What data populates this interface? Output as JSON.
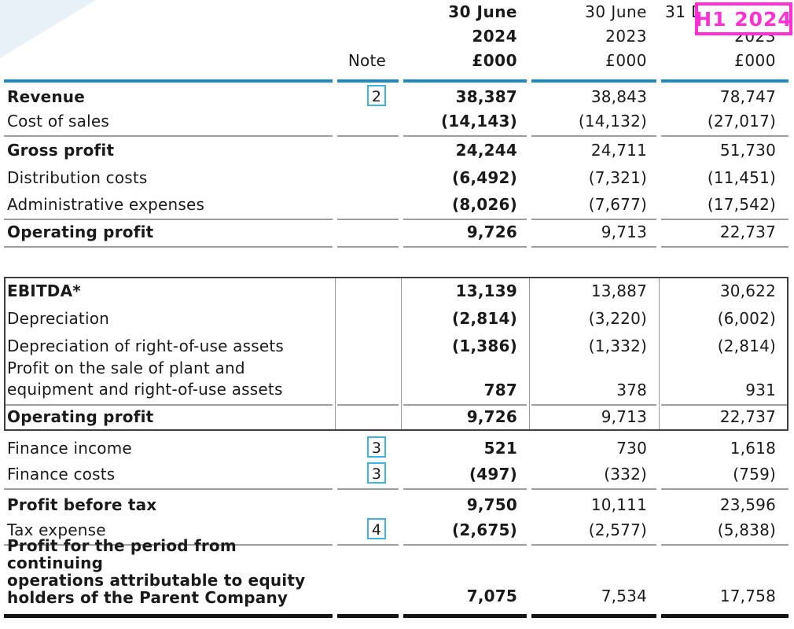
{
  "annotation": {
    "label": "H1 2024"
  },
  "colors": {
    "teal_rule": "#1f8cc0",
    "note_box_border": "#3eb5de",
    "gray_rule": "#9e9e9e",
    "thick_rule": "#161616",
    "box_border": "#3f3f3f",
    "highlight_magenta": "#ff2ed6",
    "corner_blue": "#e9f1f8"
  },
  "header": {
    "note_label": "Note",
    "columns": [
      {
        "period": "30 June",
        "year": "2024",
        "unit": "£000",
        "emphasis": true
      },
      {
        "period": "30 June",
        "year": "2023",
        "unit": "£000",
        "emphasis": false
      },
      {
        "period": "31 December",
        "year": "2023",
        "unit": "£000",
        "emphasis": false
      }
    ]
  },
  "sections": [
    {
      "name": "profit-and-loss-summary",
      "boxed": false,
      "rows": [
        {
          "label": "Revenue",
          "bold": true,
          "note": "2",
          "values": [
            "38,387",
            "38,843",
            "78,747"
          ]
        },
        {
          "label": "Cost of sales",
          "values": [
            "(14,143)",
            "(14,132)",
            "(27,017)"
          ],
          "rule": "gray"
        },
        {
          "label": "Gross profit",
          "bold": true,
          "values": [
            "24,244",
            "24,711",
            "51,730"
          ]
        },
        {
          "label": "Distribution costs",
          "values": [
            "(6,492)",
            "(7,321)",
            "(11,451)"
          ]
        },
        {
          "label": "Administrative expenses",
          "values": [
            "(8,026)",
            "(7,677)",
            "(17,542)"
          ],
          "rule": "gray"
        },
        {
          "label": "Operating profit",
          "bold": true,
          "values": [
            "9,726",
            "9,713",
            "22,737"
          ],
          "rule": "gray"
        }
      ]
    },
    {
      "name": "ebitda-reconciliation",
      "boxed": true,
      "rows": [
        {
          "label": "EBITDA*",
          "bold": true,
          "values": [
            "13,139",
            "13,887",
            "30,622"
          ]
        },
        {
          "label": "Depreciation",
          "values": [
            "(2,814)",
            "(3,220)",
            "(6,002)"
          ]
        },
        {
          "label": "Depreciation of right-of-use assets",
          "values": [
            "(1,386)",
            "(1,332)",
            "(2,814)"
          ]
        },
        {
          "label_lines": [
            "Profit on the sale of plant and",
            "equipment and right-of-use assets"
          ],
          "values": [
            "787",
            "378",
            "931"
          ],
          "rule": "gray"
        },
        {
          "label": "Operating profit",
          "bold": true,
          "values": [
            "9,726",
            "9,713",
            "22,737"
          ]
        }
      ]
    },
    {
      "name": "profit-detail",
      "boxed": false,
      "rows": [
        {
          "label": "Finance income",
          "note": "3",
          "values": [
            "521",
            "730",
            "1,618"
          ]
        },
        {
          "label": "Finance costs",
          "note": "3",
          "values": [
            "(497)",
            "(332)",
            "(759)"
          ],
          "rule": "gray"
        },
        {
          "label": "Profit before tax",
          "bold": true,
          "values": [
            "9,750",
            "10,111",
            "23,596"
          ]
        },
        {
          "label": "Tax expense",
          "note": "4",
          "values": [
            "(2,675)",
            "(2,577)",
            "(5,838)"
          ],
          "rule": "gray"
        },
        {
          "label_lines": [
            "Profit for the period from continuing",
            "operations attributable to equity",
            "holders of the Parent Company"
          ],
          "bold": true,
          "values": [
            "7,075",
            "7,534",
            "17,758"
          ],
          "rule": "thick"
        }
      ]
    }
  ]
}
